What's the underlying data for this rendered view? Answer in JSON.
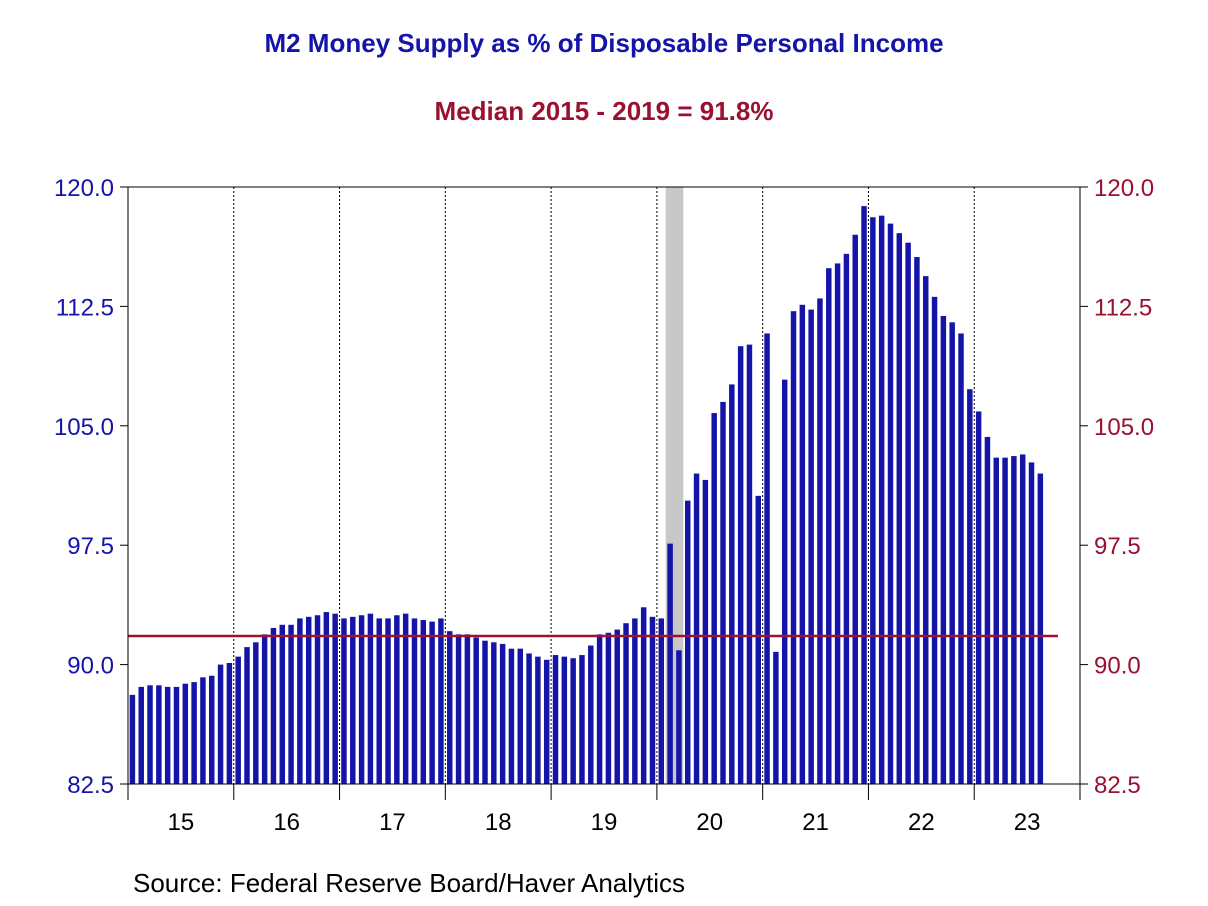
{
  "chart_data": {
    "type": "bar",
    "title": "M2 Money Supply as % of Disposable Personal Income",
    "subtitle": "Median 2015 - 2019 = 91.8%",
    "source": "Source:  Federal Reserve Board/Haver Analytics",
    "ylim": [
      82.5,
      120.0
    ],
    "yticks_left": [
      "120.0",
      "112.5",
      "105.0",
      "97.5",
      "90.0",
      "82.5"
    ],
    "yticks_right": [
      "120.0",
      "112.5",
      "105.0",
      "97.5",
      "90.0",
      "82.5"
    ],
    "ytick_values": [
      120.0,
      112.5,
      105.0,
      97.5,
      90.0,
      82.5
    ],
    "xticks": [
      "15",
      "16",
      "17",
      "18",
      "19",
      "20",
      "21",
      "22",
      "23"
    ],
    "x_range": [
      "2015-01",
      "2023-12"
    ],
    "reference_line": {
      "value": 91.8,
      "color": "#a01030"
    },
    "recession_band": [
      "2020-02",
      "2020-04"
    ],
    "grid": "vertical dotted at year boundaries",
    "colors": {
      "bars": "#1414a8",
      "left_axis": "#1414a8",
      "right_axis": "#9a1030",
      "recession": "#c8c8c8"
    },
    "series": [
      {
        "start": "2015-01",
        "frequency": "monthly",
        "values": [
          88.1,
          88.6,
          88.7,
          88.7,
          88.6,
          88.6,
          88.8,
          88.9,
          89.2,
          89.3,
          90.0,
          90.1,
          90.5,
          91.1,
          91.4,
          91.9,
          92.3,
          92.5,
          92.5,
          92.9,
          93.0,
          93.1,
          93.3,
          93.2,
          92.9,
          93.0,
          93.1,
          93.2,
          92.9,
          92.9,
          93.1,
          93.2,
          92.9,
          92.8,
          92.7,
          92.9,
          92.1,
          91.9,
          91.9,
          91.7,
          91.5,
          91.4,
          91.3,
          91.0,
          91.0,
          90.7,
          90.5,
          90.3,
          90.6,
          90.5,
          90.4,
          90.6,
          91.2,
          91.9,
          92.0,
          92.2,
          92.6,
          92.9,
          93.6,
          93.0,
          92.9,
          97.6,
          90.9,
          100.3,
          102.0,
          101.6,
          105.8,
          106.5,
          107.6,
          110.0,
          110.1,
          100.6,
          110.8,
          90.8,
          107.9,
          112.2,
          112.6,
          112.3,
          113.0,
          114.9,
          115.2,
          115.8,
          117.0,
          118.8,
          118.1,
          118.2,
          117.7,
          117.1,
          116.5,
          115.6,
          114.4,
          113.1,
          111.9,
          111.5,
          110.8,
          107.3,
          105.9,
          104.3,
          103.0,
          103.0,
          103.1,
          103.2,
          102.7,
          102.0
        ]
      }
    ]
  }
}
